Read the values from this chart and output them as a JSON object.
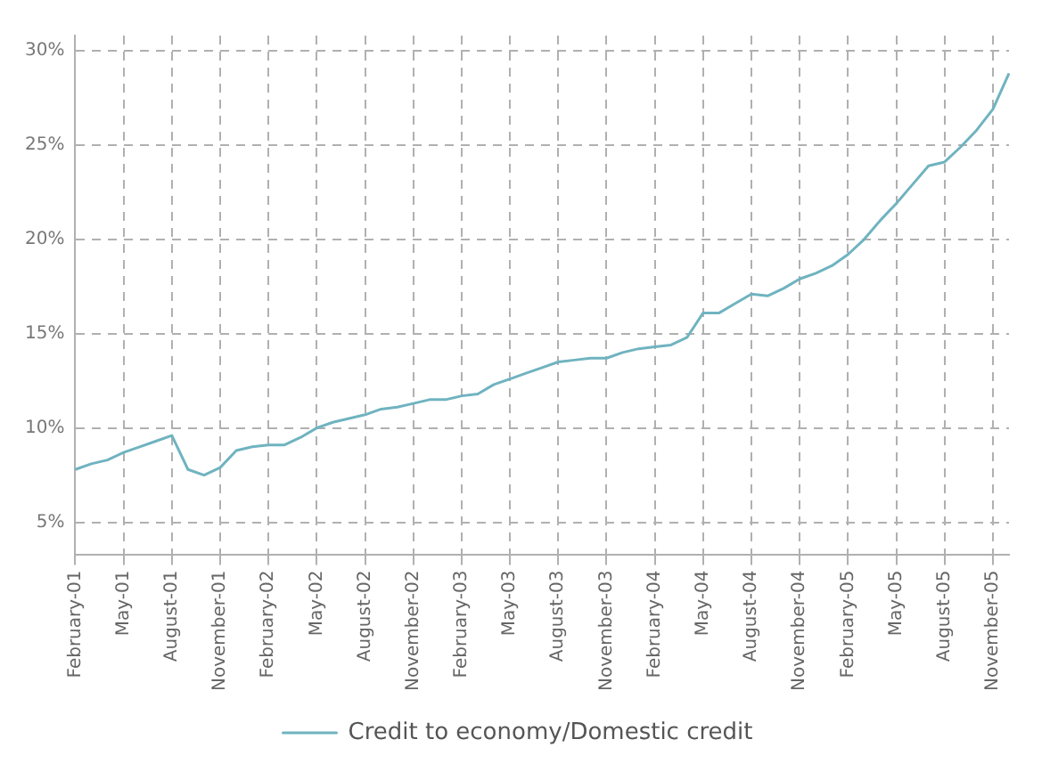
{
  "chart_data": {
    "type": "line",
    "categories": [
      "February-01",
      null,
      null,
      "May-01",
      null,
      null,
      "August-01",
      null,
      null,
      "November-01",
      null,
      null,
      "February-02",
      null,
      null,
      "May-02",
      null,
      null,
      "August-02",
      null,
      null,
      "November-02",
      null,
      null,
      "February-03",
      null,
      null,
      "May-03",
      null,
      null,
      "August-03",
      null,
      null,
      "November-03",
      null,
      null,
      "February-04",
      null,
      null,
      "May-04",
      null,
      null,
      "August-04",
      null,
      null,
      "November-04",
      null,
      null,
      "February-05",
      null,
      null,
      "May-05",
      null,
      null,
      "August-05",
      null,
      null,
      "November-05",
      null
    ],
    "series": [
      {
        "name": "Credit to economy/Domestic credit",
        "color": "#6fb3c0",
        "values": [
          7.8,
          8.1,
          8.3,
          8.7,
          9.0,
          9.3,
          9.6,
          7.8,
          7.5,
          7.9,
          8.8,
          9.0,
          9.1,
          9.1,
          9.5,
          10.0,
          10.3,
          10.5,
          10.7,
          11.0,
          11.1,
          11.3,
          11.5,
          11.5,
          11.7,
          11.8,
          12.3,
          12.6,
          12.9,
          13.2,
          13.5,
          13.6,
          13.7,
          13.7,
          14.0,
          14.2,
          14.3,
          14.4,
          14.8,
          16.1,
          16.1,
          16.6,
          17.1,
          17.0,
          17.4,
          17.9,
          18.2,
          18.6,
          19.2,
          20.0,
          21.0,
          21.9,
          22.9,
          23.9,
          24.1,
          24.9,
          25.8,
          26.9,
          28.8
        ]
      }
    ],
    "ylim": [
      3.3,
      30.8
    ],
    "yticks": [
      {
        "value": 5,
        "label": "5%"
      },
      {
        "value": 10,
        "label": "10%"
      },
      {
        "value": 15,
        "label": "15%"
      },
      {
        "value": 20,
        "label": "20%"
      },
      {
        "value": 25,
        "label": "25%"
      },
      {
        "value": 30,
        "label": "30%"
      }
    ],
    "grid": true,
    "legend": "bottom",
    "marker": "none",
    "line_style": "solid"
  }
}
